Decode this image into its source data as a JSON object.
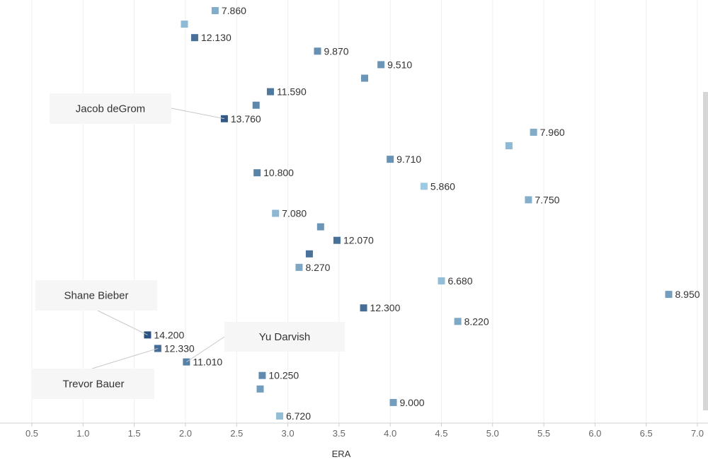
{
  "chart_data": {
    "type": "scatter",
    "title": "",
    "xlabel": "ERA",
    "ylabel": "",
    "xlim": [
      0.5,
      7.0
    ],
    "xticks": [
      "0.5",
      "1.0",
      "1.5",
      "2.0",
      "2.5",
      "3.0",
      "3.5",
      "4.0",
      "4.5",
      "5.0",
      "5.5",
      "6.0",
      "6.5",
      "7.0"
    ],
    "xtick_values": [
      0.5,
      1.0,
      1.5,
      2.0,
      2.5,
      3.0,
      3.5,
      4.0,
      4.5,
      5.0,
      5.5,
      6.0,
      6.5,
      7.0
    ],
    "color_scale": {
      "low": "#9ecae1",
      "high": "#2b5281",
      "min": 5.86,
      "max": 14.2
    },
    "points": [
      {
        "era": 2.29,
        "value": 7.86,
        "label": "7.860"
      },
      {
        "era": 1.99,
        "value": 7.0,
        "label": ""
      },
      {
        "era": 2.09,
        "value": 12.13,
        "label": "12.130"
      },
      {
        "era": 3.29,
        "value": 9.87,
        "label": "9.870"
      },
      {
        "era": 3.91,
        "value": 9.51,
        "label": "9.510"
      },
      {
        "era": 3.75,
        "value": 9.5,
        "label": ""
      },
      {
        "era": 2.83,
        "value": 11.59,
        "label": "11.590"
      },
      {
        "era": 2.69,
        "value": 10.5,
        "label": ""
      },
      {
        "era": 2.38,
        "value": 13.76,
        "label": "13.760"
      },
      {
        "era": 5.4,
        "value": 7.96,
        "label": "7.960"
      },
      {
        "era": 5.16,
        "value": 7.0,
        "label": ""
      },
      {
        "era": 4.0,
        "value": 9.71,
        "label": "9.710"
      },
      {
        "era": 2.7,
        "value": 10.8,
        "label": "10.800"
      },
      {
        "era": 4.33,
        "value": 5.86,
        "label": "5.860"
      },
      {
        "era": 5.35,
        "value": 7.75,
        "label": "7.750"
      },
      {
        "era": 2.88,
        "value": 7.08,
        "label": "7.080"
      },
      {
        "era": 3.32,
        "value": 9.5,
        "label": ""
      },
      {
        "era": 3.48,
        "value": 12.07,
        "label": "12.070"
      },
      {
        "era": 3.21,
        "value": 12.0,
        "label": ""
      },
      {
        "era": 3.11,
        "value": 8.27,
        "label": "8.270"
      },
      {
        "era": 4.5,
        "value": 6.68,
        "label": "6.680"
      },
      {
        "era": 6.72,
        "value": 8.95,
        "label": "8.950"
      },
      {
        "era": 3.74,
        "value": 12.3,
        "label": "12.300"
      },
      {
        "era": 4.66,
        "value": 8.22,
        "label": "8.220"
      },
      {
        "era": 1.63,
        "value": 14.2,
        "label": "14.200"
      },
      {
        "era": 1.73,
        "value": 12.33,
        "label": "12.330"
      },
      {
        "era": 2.01,
        "value": 11.01,
        "label": "11.010"
      },
      {
        "era": 2.75,
        "value": 10.25,
        "label": "10.250"
      },
      {
        "era": 2.73,
        "value": 9.0,
        "label": ""
      },
      {
        "era": 4.03,
        "value": 9.0,
        "label": "9.000"
      },
      {
        "era": 2.92,
        "value": 6.72,
        "label": "6.720"
      }
    ],
    "annotations": [
      {
        "text": "Jacob deGrom",
        "point_index": 8
      },
      {
        "text": "Shane Bieber",
        "point_index": 24
      },
      {
        "text": "Yu Darvish",
        "point_index": 26
      },
      {
        "text": "Trevor Bauer",
        "point_index": 25
      }
    ]
  }
}
